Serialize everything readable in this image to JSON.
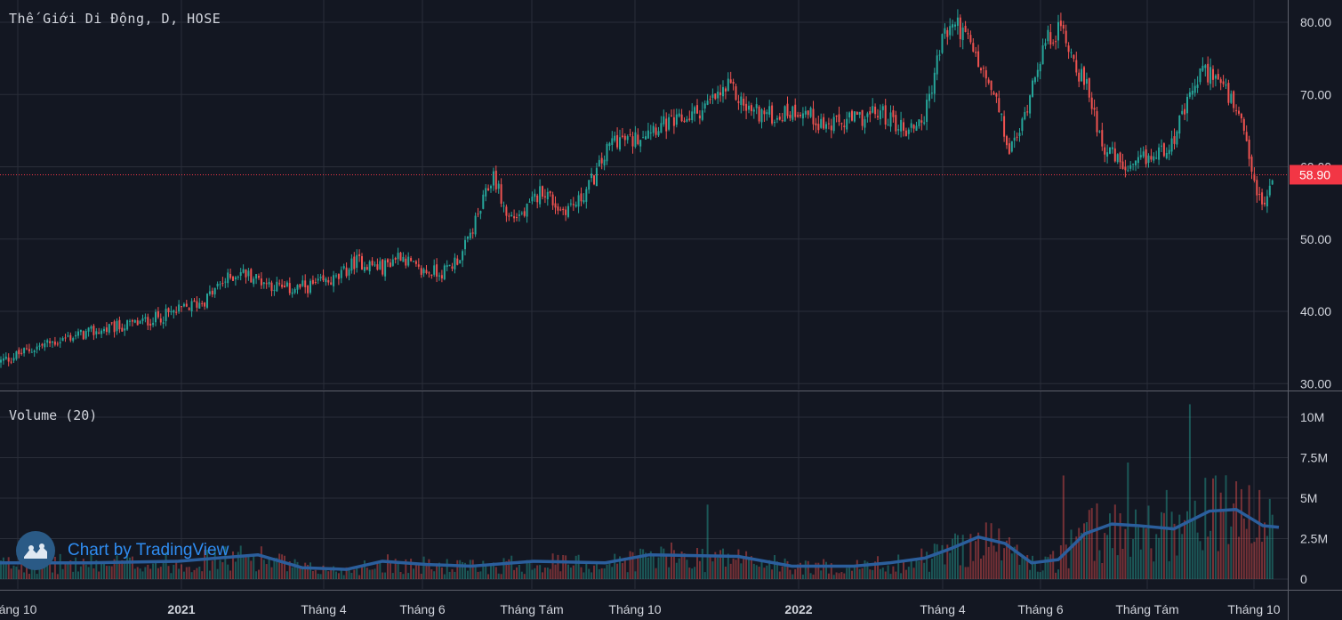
{
  "header": {
    "symbol_title": "Thế Giới Di Động, D, HOSE",
    "volume_title": "Volume (20)",
    "last_price_label": "58.90"
  },
  "branding": {
    "text": "Chart by TradingView",
    "icon": "tradingview-cloud-icon"
  },
  "colors": {
    "background": "#131722",
    "up": "#26a69a",
    "down": "#ef5350",
    "grid": "#2a2e39",
    "text": "#d1d4dc",
    "volume_ma": "#2962ff",
    "last_price": "#f23645"
  },
  "chart_data": [
    {
      "type": "candlestick",
      "title": "Thế Giới Di Động, D, HOSE",
      "y_ticks": [
        "30.00",
        "40.00",
        "50.00",
        "60.00",
        "70.00",
        "80.00"
      ],
      "ylim": [
        29.5,
        81.5
      ],
      "x_ticks": [
        "áng 10",
        "2021",
        "Tháng 4",
        "Tháng 6",
        "Tháng Tám",
        "Tháng 10",
        "2022",
        "Tháng 4",
        "Tháng 6",
        "Tháng Tám",
        "Tháng 10"
      ],
      "last_price": 58.9,
      "grid": true,
      "approx_close_path": [
        [
          0,
          33
        ],
        [
          40,
          35
        ],
        [
          80,
          36.5
        ],
        [
          120,
          37.5
        ],
        [
          160,
          38.5
        ],
        [
          200,
          40
        ],
        [
          230,
          41.5
        ],
        [
          250,
          44
        ],
        [
          270,
          45.5
        ],
        [
          300,
          44
        ],
        [
          320,
          43
        ],
        [
          350,
          43.5
        ],
        [
          380,
          44.5
        ],
        [
          400,
          47
        ],
        [
          430,
          46
        ],
        [
          450,
          48
        ],
        [
          470,
          45.5
        ],
        [
          500,
          45.5
        ],
        [
          520,
          48
        ],
        [
          540,
          54
        ],
        [
          555,
          59
        ],
        [
          570,
          53
        ],
        [
          590,
          53.5
        ],
        [
          610,
          57
        ],
        [
          630,
          54
        ],
        [
          650,
          55
        ],
        [
          670,
          59
        ],
        [
          690,
          64
        ],
        [
          710,
          63.5
        ],
        [
          730,
          65.5
        ],
        [
          760,
          66
        ],
        [
          790,
          68
        ],
        [
          820,
          71
        ],
        [
          840,
          68
        ],
        [
          870,
          67
        ],
        [
          900,
          68
        ],
        [
          930,
          65.5
        ],
        [
          960,
          66.5
        ],
        [
          990,
          67.5
        ],
        [
          1020,
          65
        ],
        [
          1040,
          67
        ],
        [
          1060,
          78
        ],
        [
          1075,
          80
        ],
        [
          1090,
          77
        ],
        [
          1105,
          73
        ],
        [
          1120,
          69
        ],
        [
          1135,
          62
        ],
        [
          1150,
          66
        ],
        [
          1165,
          74
        ],
        [
          1180,
          78
        ],
        [
          1195,
          79
        ],
        [
          1210,
          74
        ],
        [
          1225,
          70
        ],
        [
          1240,
          63
        ],
        [
          1255,
          61
        ],
        [
          1270,
          59
        ],
        [
          1285,
          61
        ],
        [
          1300,
          61.5
        ],
        [
          1320,
          64
        ],
        [
          1340,
          70
        ],
        [
          1350,
          73
        ],
        [
          1365,
          73
        ],
        [
          1380,
          70
        ],
        [
          1395,
          66
        ],
        [
          1410,
          58
        ],
        [
          1420,
          54
        ],
        [
          1432,
          58.9
        ]
      ]
    },
    {
      "type": "bar",
      "title": "Volume (20)",
      "y_ticks": [
        "0",
        "2.5M",
        "5M",
        "7.5M",
        "10M"
      ],
      "ylim": [
        0,
        10000000
      ],
      "approx_volume_ma_path": [
        [
          0,
          1.0
        ],
        [
          100,
          1.0
        ],
        [
          200,
          1.1
        ],
        [
          290,
          1.5
        ],
        [
          340,
          0.7
        ],
        [
          390,
          0.6
        ],
        [
          430,
          1.1
        ],
        [
          480,
          0.9
        ],
        [
          530,
          0.8
        ],
        [
          600,
          1.1
        ],
        [
          680,
          1.0
        ],
        [
          730,
          1.5
        ],
        [
          830,
          1.4
        ],
        [
          890,
          0.8
        ],
        [
          960,
          0.8
        ],
        [
          1000,
          1.0
        ],
        [
          1040,
          1.3
        ],
        [
          1070,
          1.9
        ],
        [
          1100,
          2.6
        ],
        [
          1130,
          2.2
        ],
        [
          1160,
          1.0
        ],
        [
          1190,
          1.2
        ],
        [
          1220,
          2.8
        ],
        [
          1250,
          3.4
        ],
        [
          1280,
          3.3
        ],
        [
          1320,
          3.1
        ],
        [
          1360,
          4.2
        ],
        [
          1390,
          4.3
        ],
        [
          1420,
          3.3
        ],
        [
          1438,
          3.2
        ]
      ],
      "notable_spikes": [
        [
          1338,
          10.8
        ],
        [
          1268,
          7.2
        ],
        [
          1313,
          5.5
        ],
        [
          1417,
          5.5
        ],
        [
          1196,
          6.4
        ],
        [
          795,
          4.6
        ]
      ]
    }
  ]
}
